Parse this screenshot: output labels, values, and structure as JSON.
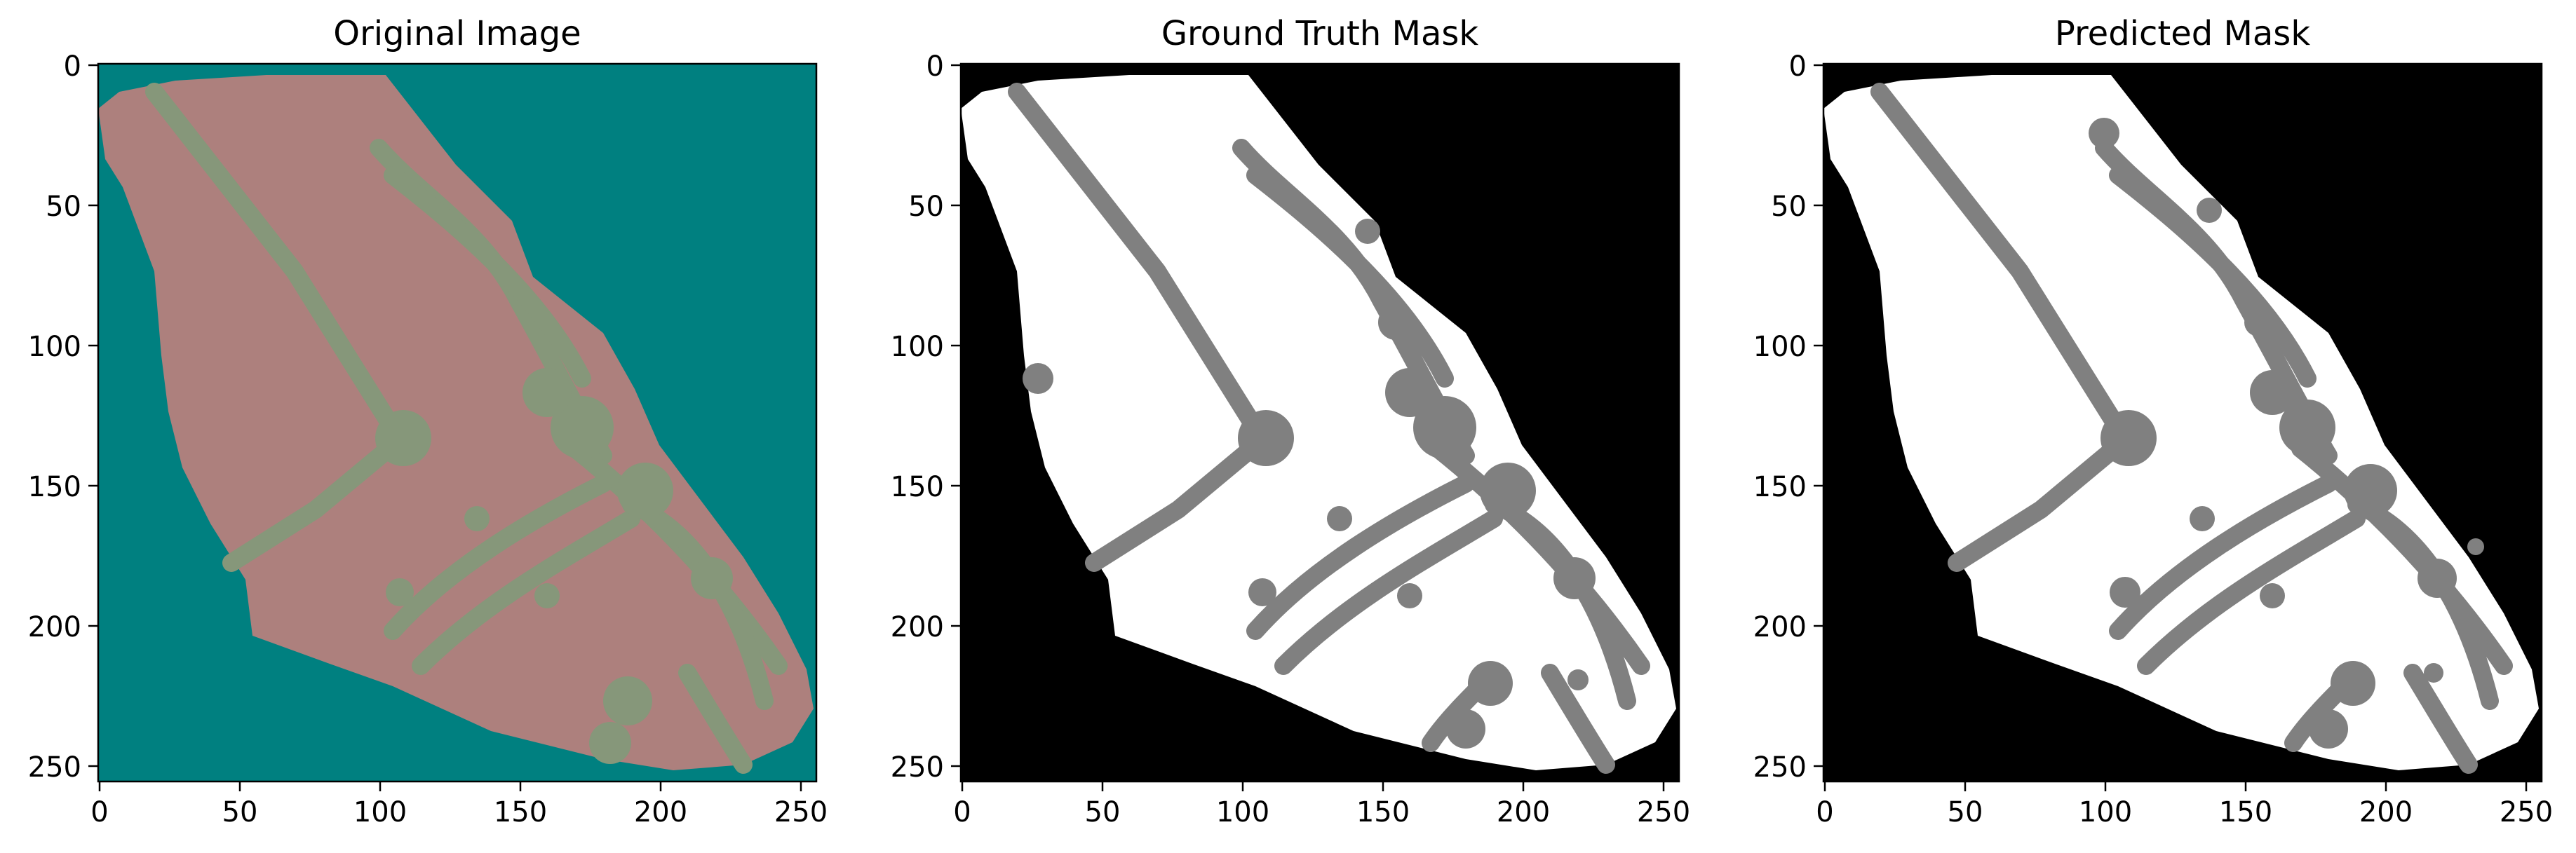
{
  "colors": {
    "background": "#008080",
    "tissue": "#ad807d",
    "structure": "#86977a",
    "mask_background": "#000000",
    "mask_tissue": "#ffffff",
    "mask_structure": "#808080"
  },
  "panels": [
    {
      "title": "Original Image",
      "type": "image",
      "xlim": [
        0,
        256
      ],
      "ylim": [
        0,
        256
      ],
      "x_ticks": [
        "0",
        "50",
        "100",
        "150",
        "200",
        "250"
      ],
      "y_ticks": [
        "0",
        "50",
        "100",
        "150",
        "200",
        "250"
      ]
    },
    {
      "title": "Ground Truth Mask",
      "type": "mask",
      "xlim": [
        0,
        256
      ],
      "ylim": [
        0,
        256
      ],
      "x_ticks": [
        "0",
        "50",
        "100",
        "150",
        "200",
        "250"
      ],
      "y_ticks": [
        "0",
        "50",
        "100",
        "150",
        "200",
        "250"
      ]
    },
    {
      "title": "Predicted Mask",
      "type": "mask",
      "xlim": [
        0,
        256
      ],
      "ylim": [
        0,
        256
      ],
      "x_ticks": [
        "0",
        "50",
        "100",
        "150",
        "200",
        "250"
      ],
      "y_ticks": [
        "0",
        "50",
        "100",
        "150",
        "200",
        "250"
      ]
    }
  ]
}
